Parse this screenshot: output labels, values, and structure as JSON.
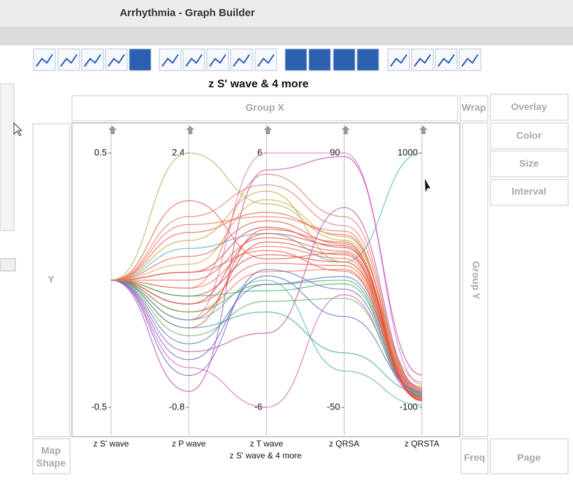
{
  "window_title": "Arrhythmia - Graph Builder",
  "zones": {
    "group_x": "Group X",
    "wrap": "Wrap",
    "overlay": "Overlay",
    "color": "Color",
    "size": "Size",
    "interval": "Interval",
    "y": "Y",
    "group_y": "Group Y",
    "map_shape_1": "Map",
    "map_shape_2": "Shape",
    "freq": "Freq",
    "page": "Page"
  },
  "chart_data": {
    "type": "parallel",
    "title": "z S' wave & 4 more",
    "x_label": "z S' wave & 4 more",
    "axes": [
      {
        "name": "z S' wave",
        "lim": [
          -0.5,
          0.5
        ]
      },
      {
        "name": "z P wave",
        "lim": [
          -0.8,
          2.4
        ]
      },
      {
        "name": "z T wave",
        "lim": [
          -6,
          6
        ]
      },
      {
        "name": "z QRSA",
        "lim": [
          -50,
          90
        ]
      },
      {
        "name": "z QRSTA",
        "lim": [
          -100,
          1000
        ]
      }
    ],
    "series": [
      {
        "color": "#a8b84a",
        "values": [
          0,
          2.4,
          3.6,
          42,
          10
        ]
      },
      {
        "color": "#d65fc0",
        "values": [
          0,
          -0.3,
          -6,
          12,
          -60
        ]
      },
      {
        "color": "#e06bd0",
        "values": [
          0,
          0.3,
          6,
          90,
          0
        ]
      },
      {
        "color": "#4bb3c8",
        "values": [
          0,
          1.2,
          2.2,
          30,
          1000
        ]
      },
      {
        "color": "#c04fb0",
        "values": [
          0,
          -0.6,
          5.2,
          88,
          40
        ]
      },
      {
        "color": "#e0786a",
        "values": [
          0,
          1.6,
          4.5,
          50,
          -20
        ]
      },
      {
        "color": "#e85a4a",
        "values": [
          0,
          1.4,
          3.2,
          45,
          -25
        ]
      },
      {
        "color": "#e85a4a",
        "values": [
          0,
          1.1,
          2.8,
          40,
          -30
        ]
      },
      {
        "color": "#d9463a",
        "values": [
          0,
          0.9,
          2.5,
          38,
          -35
        ]
      },
      {
        "color": "#e85a4a",
        "values": [
          0,
          0.8,
          2.0,
          36,
          -40
        ]
      },
      {
        "color": "#ef6b50",
        "values": [
          0,
          0.7,
          1.6,
          32,
          -45
        ]
      },
      {
        "color": "#d9463a",
        "values": [
          0,
          0.6,
          1.2,
          30,
          -50
        ]
      },
      {
        "color": "#e85a4a",
        "values": [
          0,
          0.5,
          0.8,
          28,
          -55
        ]
      },
      {
        "color": "#ef6b50",
        "values": [
          0,
          0.4,
          0.4,
          26,
          -60
        ]
      },
      {
        "color": "#d9463a",
        "values": [
          0,
          0.3,
          1.8,
          34,
          -65
        ]
      },
      {
        "color": "#e85a4a",
        "values": [
          0,
          0.2,
          2.4,
          41,
          -70
        ]
      },
      {
        "color": "#e0a040",
        "values": [
          0,
          1.0,
          3.8,
          44,
          -15
        ]
      },
      {
        "color": "#c9a030",
        "values": [
          0,
          1.3,
          4.2,
          30,
          -10
        ]
      },
      {
        "color": "#5aa84a",
        "values": [
          0,
          0.4,
          -0.2,
          20,
          -55
        ]
      },
      {
        "color": "#40b070",
        "values": [
          0,
          0.6,
          -0.5,
          18,
          -50
        ]
      },
      {
        "color": "#6ab060",
        "values": [
          0,
          0.1,
          -1.0,
          10,
          -45
        ]
      },
      {
        "color": "#4a80c0",
        "values": [
          0,
          0.0,
          -0.2,
          22,
          -40
        ]
      },
      {
        "color": "#5a70c8",
        "values": [
          0,
          -0.2,
          0.2,
          0,
          -30
        ]
      },
      {
        "color": "#3aa0a0",
        "values": [
          0,
          0.2,
          -1.5,
          -20,
          -35
        ]
      },
      {
        "color": "#7a60c0",
        "values": [
          0,
          -0.4,
          0.5,
          15,
          -50
        ]
      },
      {
        "color": "#e85a4a",
        "values": [
          0,
          0.9,
          1.4,
          25,
          -58
        ]
      },
      {
        "color": "#ef6b50",
        "values": [
          0,
          1.5,
          3.0,
          47,
          -62
        ]
      },
      {
        "color": "#d9463a",
        "values": [
          0,
          0.5,
          2.2,
          39,
          -68
        ]
      },
      {
        "color": "#e85a4a",
        "values": [
          0,
          1.8,
          1.0,
          35,
          -72
        ]
      },
      {
        "color": "#c04fb0",
        "values": [
          0,
          -0.1,
          -2.5,
          60,
          -20
        ]
      },
      {
        "color": "#58b0a8",
        "values": [
          0,
          0.3,
          0.0,
          -30,
          -90
        ]
      },
      {
        "color": "#e0786a",
        "values": [
          0,
          0.7,
          5.0,
          55,
          -30
        ]
      }
    ]
  }
}
